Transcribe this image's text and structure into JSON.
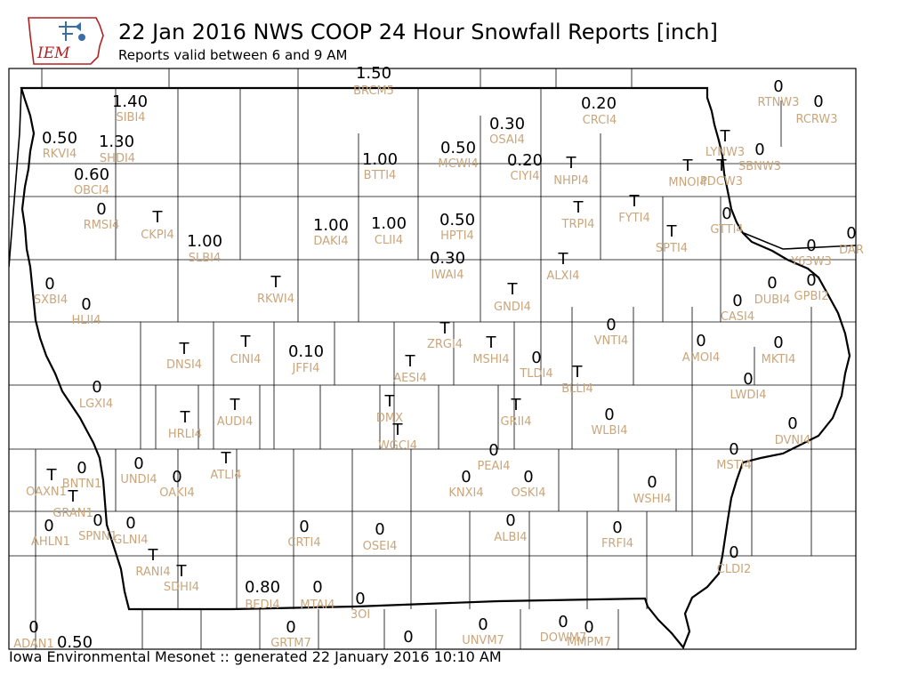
{
  "header": {
    "title": "22 Jan 2016 NWS COOP 24 Hour Snowfall Reports [inch]",
    "subtitle": "Reports valid between 6 and 9 AM",
    "logo_text": "IEM"
  },
  "footer": {
    "text": "Iowa Environmental Mesonet :: generated 22 January 2016 10:10 AM"
  },
  "colors": {
    "value_text": "#000000",
    "station_id_text": "#c9a67c",
    "county_lines": "#000000",
    "logo_red": "#b22222",
    "logo_blue": "#3a6ea5"
  },
  "chart_data": {
    "type": "map",
    "region": "Iowa",
    "units": "inch",
    "stations": [
      {
        "id": "BRCM5",
        "value": "1.50"
      },
      {
        "id": "SIBI4",
        "value": "1.40"
      },
      {
        "id": "CRCI4",
        "value": "0.20"
      },
      {
        "id": "RTNW3",
        "value": "0"
      },
      {
        "id": "RCRW3",
        "value": "0"
      },
      {
        "id": "OSAI4",
        "value": "0.30"
      },
      {
        "id": "RKVI4",
        "value": "0.50"
      },
      {
        "id": "SHDI4",
        "value": "1.30"
      },
      {
        "id": "MCWI4",
        "value": "0.50"
      },
      {
        "id": "LYNW3",
        "value": "T"
      },
      {
        "id": "SBNW3",
        "value": "0"
      },
      {
        "id": "BTTI4",
        "value": "1.00"
      },
      {
        "id": "CIYI4",
        "value": "0.20"
      },
      {
        "id": "NHPI4",
        "value": "T"
      },
      {
        "id": "MNOI4",
        "value": "T"
      },
      {
        "id": "PDCW3",
        "value": "T"
      },
      {
        "id": "OBCI4",
        "value": "0.60"
      },
      {
        "id": "RMSI4",
        "value": "0"
      },
      {
        "id": "CKPI4",
        "value": "T"
      },
      {
        "id": "TRPI4",
        "value": "T"
      },
      {
        "id": "FYTI4",
        "value": "T"
      },
      {
        "id": "GTTI4",
        "value": "0"
      },
      {
        "id": "DAKI4",
        "value": "1.00"
      },
      {
        "id": "CLII4",
        "value": "1.00"
      },
      {
        "id": "HPTI4",
        "value": "0.50"
      },
      {
        "id": "SPTI4",
        "value": "T"
      },
      {
        "id": "SLBI4",
        "value": "1.00"
      },
      {
        "id": "Y63W3",
        "value": "0"
      },
      {
        "id": "DAR",
        "value": "0"
      },
      {
        "id": "IWAI4",
        "value": "0.30"
      },
      {
        "id": "ALXI4",
        "value": "T"
      },
      {
        "id": "SXBI4",
        "value": "0"
      },
      {
        "id": "HLII4",
        "value": "0"
      },
      {
        "id": "RKWI4",
        "value": "T"
      },
      {
        "id": "GNDI4",
        "value": "T"
      },
      {
        "id": "DUBI4",
        "value": "0"
      },
      {
        "id": "GPBI2",
        "value": "0"
      },
      {
        "id": "CASI4",
        "value": "0"
      },
      {
        "id": "VNTI4",
        "value": "0"
      },
      {
        "id": "ZRGI4",
        "value": "T"
      },
      {
        "id": "DNSI4",
        "value": "T"
      },
      {
        "id": "CINI4",
        "value": "T"
      },
      {
        "id": "JFFI4",
        "value": "0.10"
      },
      {
        "id": "MSHI4",
        "value": "T"
      },
      {
        "id": "AMOI4",
        "value": "0"
      },
      {
        "id": "MKTI4",
        "value": "0"
      },
      {
        "id": "AESI4",
        "value": "T"
      },
      {
        "id": "TLDI4",
        "value": "0"
      },
      {
        "id": "BLLI4",
        "value": "T"
      },
      {
        "id": "LWDI4",
        "value": "0"
      },
      {
        "id": "LGXI4",
        "value": "0"
      },
      {
        "id": "HRLI4",
        "value": "T"
      },
      {
        "id": "AUDI4",
        "value": "T"
      },
      {
        "id": "DMX",
        "value": "T"
      },
      {
        "id": "GRII4",
        "value": "T"
      },
      {
        "id": "WLBI4",
        "value": "0"
      },
      {
        "id": "DVNI4",
        "value": "0"
      },
      {
        "id": "WGCI4",
        "value": "T"
      },
      {
        "id": "PEAI4",
        "value": "0"
      },
      {
        "id": "MSTI4",
        "value": "0"
      },
      {
        "id": "OAXN1",
        "value": "T"
      },
      {
        "id": "BNTN1",
        "value": "0"
      },
      {
        "id": "UNDI4",
        "value": "0"
      },
      {
        "id": "OAKI4",
        "value": "0"
      },
      {
        "id": "ATLI4",
        "value": "T"
      },
      {
        "id": "KNXI4",
        "value": "0"
      },
      {
        "id": "OSKI4",
        "value": "0"
      },
      {
        "id": "WSHI4",
        "value": "0"
      },
      {
        "id": "GRAN1",
        "value": "T"
      },
      {
        "id": "AHLN1",
        "value": "0"
      },
      {
        "id": "SPNN1",
        "value": "0"
      },
      {
        "id": "GLNI4",
        "value": "0"
      },
      {
        "id": "CRTI4",
        "value": "0"
      },
      {
        "id": "OSEI4",
        "value": "0"
      },
      {
        "id": "ALBI4",
        "value": "0"
      },
      {
        "id": "FRFI4",
        "value": "0"
      },
      {
        "id": "RANI4",
        "value": "T"
      },
      {
        "id": "SDHI4",
        "value": "T"
      },
      {
        "id": "CLDI2",
        "value": "0"
      },
      {
        "id": "BEDI4",
        "value": "0.80"
      },
      {
        "id": "MTAI4",
        "value": "0"
      },
      {
        "id": "3OI",
        "value": "0"
      },
      {
        "id": "ADAN1",
        "value": "0"
      },
      {
        "id": "",
        "value": "0.50"
      },
      {
        "id": "GRTM7",
        "value": "0"
      },
      {
        "id": "",
        "value": "0"
      },
      {
        "id": "UNVM7",
        "value": "0"
      },
      {
        "id": "DOWM7",
        "value": "0"
      },
      {
        "id": "MMPM7",
        "value": "0"
      }
    ]
  }
}
